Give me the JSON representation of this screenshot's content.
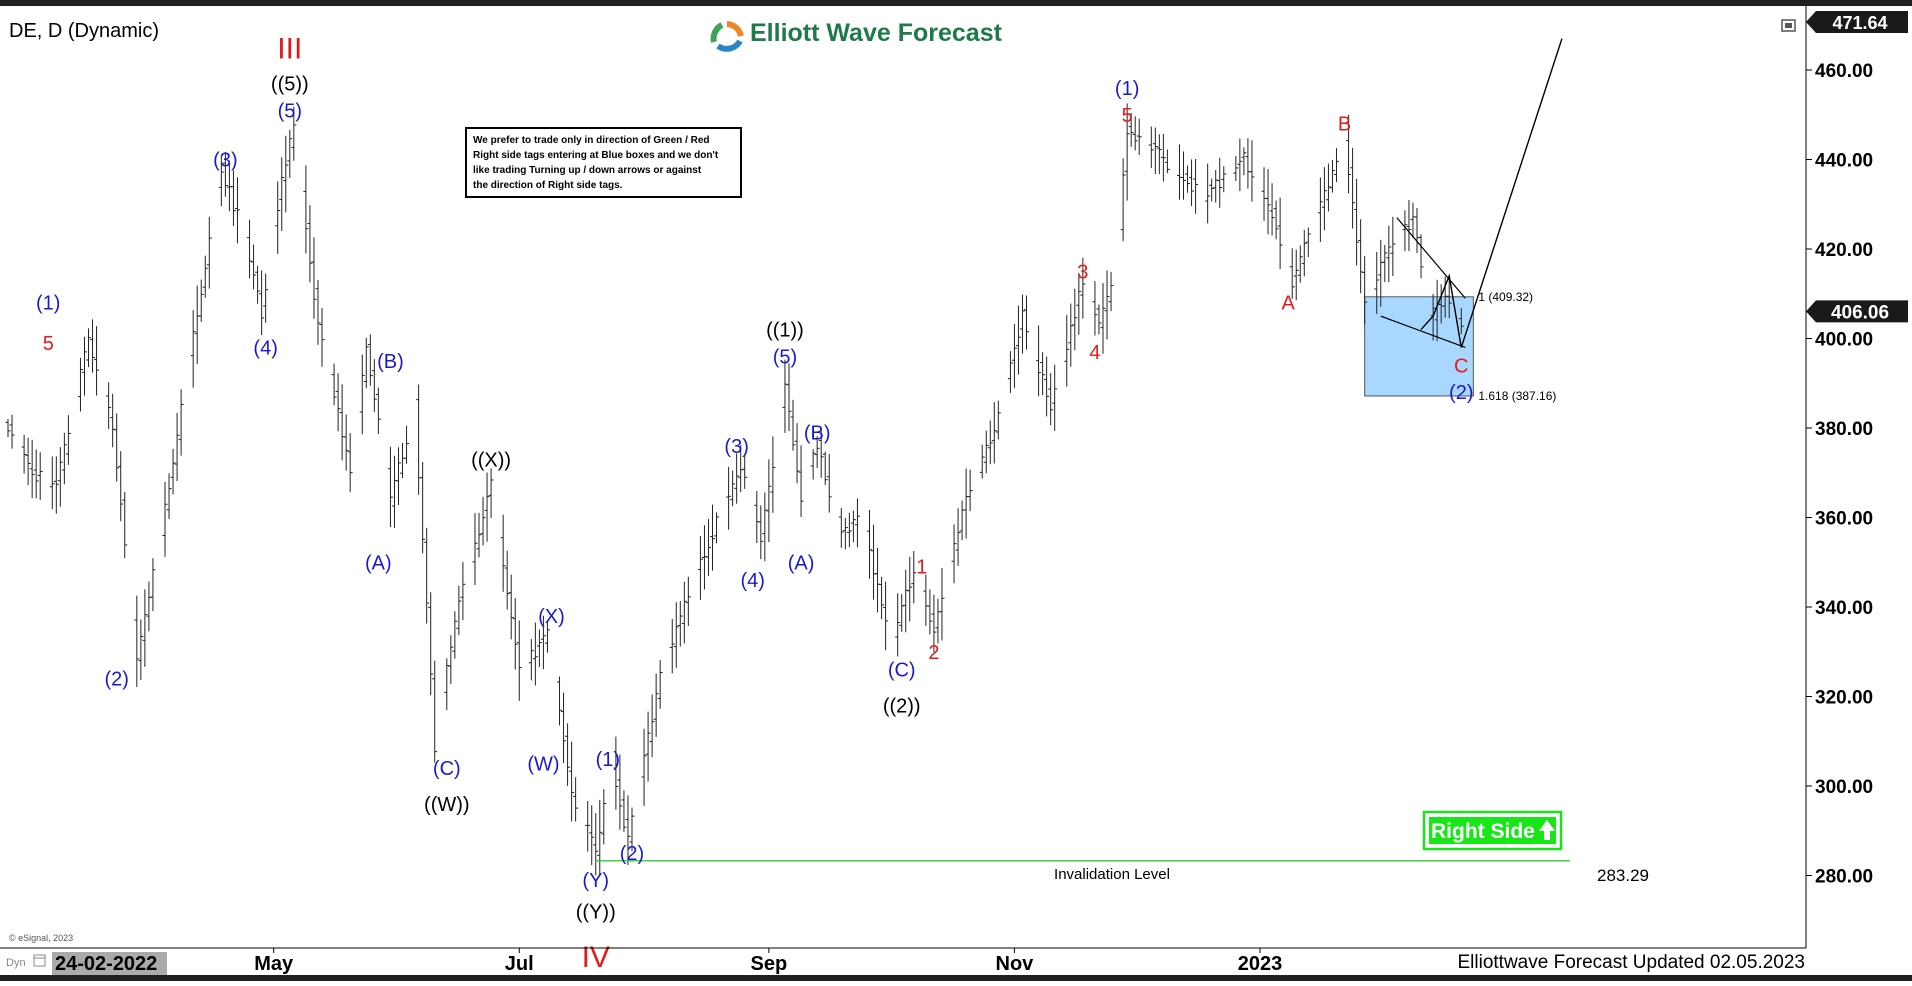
{
  "header": {
    "symbol": "DE, D (Dynamic)",
    "brand": "Elliott Wave Forecast",
    "brand_colors": {
      "text": "#1e7a4a",
      "logo_orange": "#f0852d",
      "logo_blue": "#2b86c5",
      "logo_green": "#3aa655"
    },
    "last_price_top": "471.64"
  },
  "note_box": {
    "lines": [
      "We prefer to trade only in direction of Green / Red",
      "Right side tags entering at Blue boxes and we don't",
      "like trading Turning up / down arrows or against",
      "the direction of Right side tags."
    ]
  },
  "footer": {
    "esignal": "© eSignal, 2023",
    "dyn": "Dyn",
    "start_date": "24-02-2022",
    "updated": "Elliottwave Forecast Updated 02.05.2023"
  },
  "right_side_tag": {
    "label": "Right Side",
    "color": "#19e619"
  },
  "chart_data": {
    "type": "ohlc",
    "symbol": "DE",
    "timeframe": "D",
    "x_start": "2022-02-24",
    "x_tick_labels": [
      "May",
      "Jul",
      "Sep",
      "Nov",
      "2023"
    ],
    "x_ticks": [
      {
        "label": "May",
        "date": "2022-05-01"
      },
      {
        "label": "Jul",
        "date": "2022-07-01"
      },
      {
        "label": "Sep",
        "date": "2022-09-01"
      },
      {
        "label": "Nov",
        "date": "2022-11-01"
      },
      {
        "label": "2023",
        "date": "2023-01-01"
      }
    ],
    "y_ticks": [
      280,
      300,
      320,
      340,
      360,
      380,
      400,
      420,
      440,
      460
    ],
    "ylim": [
      258,
      475
    ],
    "current_price": "406.06",
    "price_path": [
      [
        "2022-02-24",
        380
      ],
      [
        "2022-03-02",
        370
      ],
      [
        "2022-03-08",
        367
      ],
      [
        "2022-03-16",
        400
      ],
      [
        "2022-03-22",
        380
      ],
      [
        "2022-03-28",
        328
      ],
      [
        "2022-04-04",
        362
      ],
      [
        "2022-04-10",
        395
      ],
      [
        "2022-04-18",
        438
      ],
      [
        "2022-04-24",
        422
      ],
      [
        "2022-04-28",
        406
      ],
      [
        "2022-05-02",
        430
      ],
      [
        "2022-05-06",
        448
      ],
      [
        "2022-05-09",
        425
      ],
      [
        "2022-05-12",
        402
      ],
      [
        "2022-05-16",
        388
      ],
      [
        "2022-05-20",
        370
      ],
      [
        "2022-05-24",
        398
      ],
      [
        "2022-05-30",
        364
      ],
      [
        "2022-06-05",
        385
      ],
      [
        "2022-06-10",
        309
      ],
      [
        "2022-06-16",
        342
      ],
      [
        "2022-06-24",
        367
      ],
      [
        "2022-07-01",
        325
      ],
      [
        "2022-07-08",
        334
      ],
      [
        "2022-07-14",
        298
      ],
      [
        "2022-07-20",
        286
      ],
      [
        "2022-07-24",
        305
      ],
      [
        "2022-07-28",
        288
      ],
      [
        "2022-08-05",
        325
      ],
      [
        "2022-08-15",
        350
      ],
      [
        "2022-08-25",
        372
      ],
      [
        "2022-08-30",
        355
      ],
      [
        "2022-09-05",
        390
      ],
      [
        "2022-09-09",
        365
      ],
      [
        "2022-09-13",
        376
      ],
      [
        "2022-09-19",
        356
      ],
      [
        "2022-09-24",
        360
      ],
      [
        "2022-10-01",
        332
      ],
      [
        "2022-10-07",
        348
      ],
      [
        "2022-10-12",
        335
      ],
      [
        "2022-10-20",
        365
      ],
      [
        "2022-10-27",
        380
      ],
      [
        "2022-11-03",
        405
      ],
      [
        "2022-11-10",
        385
      ],
      [
        "2022-11-18",
        413
      ],
      [
        "2022-11-22",
        403
      ],
      [
        "2022-11-26",
        415
      ],
      [
        "2022-11-29",
        447
      ],
      [
        "2022-12-08",
        440
      ],
      [
        "2022-12-18",
        432
      ],
      [
        "2022-12-28",
        440
      ],
      [
        "2023-01-04",
        428
      ],
      [
        "2023-01-09",
        413
      ],
      [
        "2023-01-16",
        430
      ],
      [
        "2023-01-22",
        445
      ],
      [
        "2023-01-27",
        407
      ],
      [
        "2023-02-02",
        420
      ],
      [
        "2023-02-08",
        427
      ],
      [
        "2023-02-12",
        404
      ],
      [
        "2023-02-16",
        410
      ],
      [
        "2023-02-20",
        403
      ]
    ],
    "wave_labels": [
      {
        "text": "III",
        "date": "2022-05-05",
        "price": 465,
        "color": "#e41a1a",
        "size": "large"
      },
      {
        "text": "((5))",
        "date": "2022-05-05",
        "price": 457,
        "color": "#000000"
      },
      {
        "text": "(5)",
        "date": "2022-05-05",
        "price": 451,
        "color": "#1a1acd"
      },
      {
        "text": "(3)",
        "date": "2022-04-19",
        "price": 440,
        "color": "#1a1acd"
      },
      {
        "text": "(4)",
        "date": "2022-04-29",
        "price": 398,
        "color": "#1a1acd"
      },
      {
        "text": "(1)",
        "date": "2022-03-06",
        "price": 408,
        "color": "#1a1acd"
      },
      {
        "text": "5",
        "date": "2022-03-06",
        "price": 399,
        "color": "#e41a1a"
      },
      {
        "text": "(2)",
        "date": "2022-03-23",
        "price": 324,
        "color": "#1a1acd"
      },
      {
        "text": "(B)",
        "date": "2022-05-30",
        "price": 395,
        "color": "#1a1acd"
      },
      {
        "text": "(A)",
        "date": "2022-05-27",
        "price": 350,
        "color": "#1a1acd"
      },
      {
        "text": "((X))",
        "date": "2022-06-24",
        "price": 373,
        "color": "#000000"
      },
      {
        "text": "(C)",
        "date": "2022-06-13",
        "price": 304,
        "color": "#1a1acd"
      },
      {
        "text": "((W))",
        "date": "2022-06-13",
        "price": 296,
        "color": "#000000"
      },
      {
        "text": "(X)",
        "date": "2022-07-09",
        "price": 338,
        "color": "#1a1acd"
      },
      {
        "text": "(W)",
        "date": "2022-07-07",
        "price": 305,
        "color": "#1a1acd"
      },
      {
        "text": "(1)",
        "date": "2022-07-23",
        "price": 306,
        "color": "#1a1acd"
      },
      {
        "text": "(2)",
        "date": "2022-07-29",
        "price": 285,
        "color": "#1a1acd"
      },
      {
        "text": "(Y)",
        "date": "2022-07-20",
        "price": 279,
        "color": "#1a1acd"
      },
      {
        "text": "((Y))",
        "date": "2022-07-20",
        "price": 272,
        "color": "#000000"
      },
      {
        "text": "IV",
        "date": "2022-07-20",
        "price": 262,
        "color": "#e41a1a",
        "size": "large"
      },
      {
        "text": "(3)",
        "date": "2022-08-24",
        "price": 376,
        "color": "#1a1acd"
      },
      {
        "text": "(4)",
        "date": "2022-08-28",
        "price": 346,
        "color": "#1a1acd"
      },
      {
        "text": "((1))",
        "date": "2022-09-05",
        "price": 402,
        "color": "#000000"
      },
      {
        "text": "(5)",
        "date": "2022-09-05",
        "price": 396,
        "color": "#1a1acd"
      },
      {
        "text": "(B)",
        "date": "2022-09-13",
        "price": 379,
        "color": "#1a1acd"
      },
      {
        "text": "(A)",
        "date": "2022-09-09",
        "price": 350,
        "color": "#1a1acd"
      },
      {
        "text": "1",
        "date": "2022-10-09",
        "price": 349,
        "color": "#e41a1a"
      },
      {
        "text": "2",
        "date": "2022-10-12",
        "price": 330,
        "color": "#e41a1a"
      },
      {
        "text": "(C)",
        "date": "2022-10-04",
        "price": 326,
        "color": "#1a1acd"
      },
      {
        "text": "((2))",
        "date": "2022-10-04",
        "price": 318,
        "color": "#000000"
      },
      {
        "text": "3",
        "date": "2022-11-18",
        "price": 415,
        "color": "#e41a1a"
      },
      {
        "text": "4",
        "date": "2022-11-21",
        "price": 397,
        "color": "#e41a1a"
      },
      {
        "text": "(1)",
        "date": "2022-11-29",
        "price": 456,
        "color": "#1a1acd"
      },
      {
        "text": "5",
        "date": "2022-11-29",
        "price": 450,
        "color": "#e41a1a"
      },
      {
        "text": "A",
        "date": "2023-01-08",
        "price": 408,
        "color": "#e41a1a"
      },
      {
        "text": "B",
        "date": "2023-01-22",
        "price": 448,
        "color": "#e41a1a"
      },
      {
        "text": "C",
        "date": "2023-02-20",
        "price": 394,
        "color": "#e41a1a"
      },
      {
        "text": "(2)",
        "date": "2023-02-20",
        "price": 388,
        "color": "#1a1acd"
      }
    ],
    "blue_box": {
      "date_from": "2023-01-27",
      "date_to": "2023-02-23",
      "price_high": 409.32,
      "price_low": 387.16,
      "color": "#a8d8ff"
    },
    "fib_labels": [
      {
        "text": "1 (409.32)",
        "price": 409.32
      },
      {
        "text": "1.618 (387.16)",
        "price": 387.16
      }
    ],
    "triangle_lines": [
      [
        [
          "2023-02-04",
          427
        ],
        [
          "2023-02-21",
          409
        ]
      ],
      [
        [
          "2023-01-31",
          405
        ],
        [
          "2023-02-21",
          398
        ]
      ]
    ],
    "triangle_zigzag": [
      [
        "2023-02-10",
        402
      ],
      [
        "2023-02-13",
        405
      ],
      [
        "2023-02-17",
        414
      ],
      [
        "2023-02-20",
        398
      ]
    ],
    "projection_line": [
      [
        "2023-02-20",
        398
      ],
      [
        "2023-03-17",
        467
      ]
    ],
    "invalidation": {
      "label": "Invalidation Level",
      "value": "283.29",
      "price": 283.29,
      "date_from": "2022-07-20",
      "date_to": "2023-03-19",
      "color": "#33cc33"
    }
  }
}
